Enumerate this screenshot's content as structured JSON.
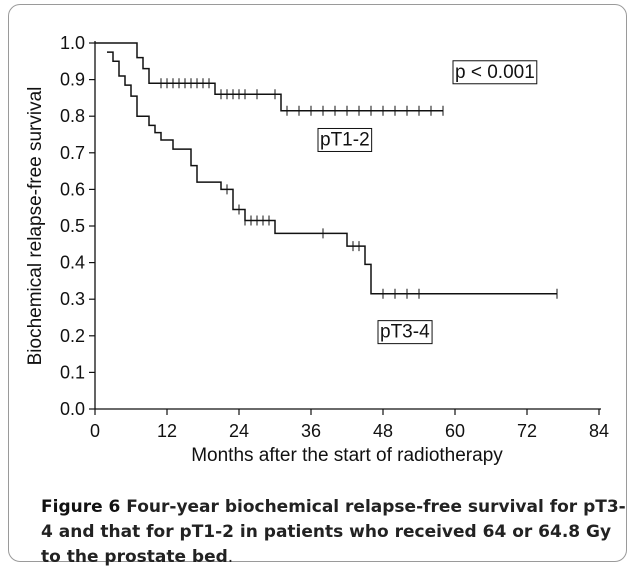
{
  "figure": {
    "label": "Figure 6",
    "caption_text": "Four-year biochemical relapse-free survival for pT3-4 and that for pT1-2 in patients who received 64 or 64.8 Gy to the prostate bed",
    "caption_end": "."
  },
  "chart_data": {
    "type": "line",
    "step": true,
    "title": "",
    "xlabel": "Months after the start of radiotherapy",
    "ylabel": "Biochemical relapse-free survival",
    "xlim": [
      0,
      84
    ],
    "ylim": [
      0.0,
      1.0
    ],
    "x_ticks": [
      0,
      12,
      24,
      36,
      48,
      60,
      72,
      84
    ],
    "y_ticks": [
      0.0,
      0.1,
      0.2,
      0.3,
      0.4,
      0.5,
      0.6,
      0.7,
      0.8,
      0.9,
      1.0
    ],
    "y_tick_labels": [
      "0.0",
      "0.1",
      "0.2",
      "0.3",
      "0.4",
      "0.5",
      "0.6",
      "0.7",
      "0.8",
      "0.9",
      "1.0"
    ],
    "grid": false,
    "series": [
      {
        "name": "pT1-2",
        "steps": [
          [
            0,
            1.0
          ],
          [
            7,
            0.96
          ],
          [
            8,
            0.93
          ],
          [
            9,
            0.89
          ],
          [
            20,
            0.86
          ],
          [
            31,
            0.815
          ],
          [
            58,
            0.815
          ]
        ],
        "censored": [
          11,
          12,
          13,
          14,
          15,
          16,
          17,
          18,
          19,
          21,
          22,
          23,
          24,
          25,
          27,
          30,
          32,
          34,
          36,
          38,
          40,
          42,
          44,
          46,
          48,
          50,
          52,
          54,
          56,
          58
        ]
      },
      {
        "name": "pT3-4",
        "steps": [
          [
            2,
            0.975
          ],
          [
            3,
            0.95
          ],
          [
            4,
            0.91
          ],
          [
            5,
            0.885
          ],
          [
            6,
            0.855
          ],
          [
            7,
            0.8
          ],
          [
            9,
            0.775
          ],
          [
            10,
            0.755
          ],
          [
            11,
            0.735
          ],
          [
            13,
            0.71
          ],
          [
            16,
            0.665
          ],
          [
            17,
            0.62
          ],
          [
            21,
            0.6
          ],
          [
            23,
            0.545
          ],
          [
            25,
            0.515
          ],
          [
            30,
            0.48
          ],
          [
            42,
            0.445
          ],
          [
            45,
            0.395
          ],
          [
            46,
            0.315
          ],
          [
            77,
            0.315
          ]
        ],
        "censored": [
          22,
          24,
          25,
          26,
          27,
          28,
          29,
          38,
          43,
          44,
          48,
          50,
          52,
          54,
          77
        ]
      }
    ],
    "annotations": [
      "p < 0.001",
      "pT1-2",
      "pT3-4"
    ]
  }
}
